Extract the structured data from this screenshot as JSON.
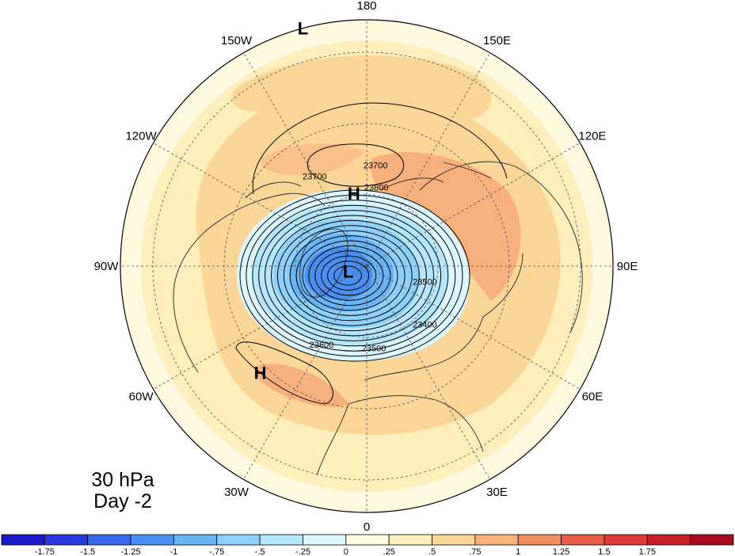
{
  "caption": {
    "level": "30 hPa",
    "day": "Day -2"
  },
  "longitude_labels": [
    {
      "label": "180",
      "lon": 180
    },
    {
      "label": "150E",
      "lon": 150
    },
    {
      "label": "120E",
      "lon": 120
    },
    {
      "label": "90E",
      "lon": 90
    },
    {
      "label": "60E",
      "lon": 60
    },
    {
      "label": "30E",
      "lon": 30
    },
    {
      "label": "0",
      "lon": 0
    },
    {
      "label": "30W",
      "lon": -30
    },
    {
      "label": "60W",
      "lon": -60
    },
    {
      "label": "90W",
      "lon": -90
    },
    {
      "label": "120W",
      "lon": -120
    },
    {
      "label": "150W",
      "lon": -150
    }
  ],
  "pressure_centers": [
    {
      "label": "L",
      "kind": "low",
      "lon": -165,
      "lat": 0
    },
    {
      "label": "H",
      "kind": "high",
      "lon": -170,
      "lat": 63
    },
    {
      "label": "L",
      "kind": "low",
      "lon": -75,
      "lat": 83
    },
    {
      "label": "H",
      "kind": "high",
      "lon": -45,
      "lat": 35
    }
  ],
  "contour_labels": [
    {
      "text": "23700",
      "lon": 175,
      "lat": 53
    },
    {
      "text": "23700",
      "lon": -150,
      "lat": 52
    },
    {
      "text": "23800",
      "lon": 173,
      "lat": 61
    },
    {
      "text": "23500",
      "lon": 75,
      "lat": 68
    },
    {
      "text": "23400",
      "lon": 45,
      "lat": 60
    },
    {
      "text": "23500",
      "lon": 5,
      "lat": 60
    },
    {
      "text": "23600",
      "lon": -30,
      "lat": 57
    }
  ],
  "colorbar": {
    "colors": [
      "#1a1ac8",
      "#2a3ae0",
      "#3a68ec",
      "#4a8ef2",
      "#6ab4f6",
      "#8ed0fa",
      "#b4e6fc",
      "#dcf6fe",
      "#fffbe2",
      "#fdeebc",
      "#fbd698",
      "#f8b478",
      "#f08e5e",
      "#e85a48",
      "#de3a3a",
      "#c81e2a",
      "#a80c1e"
    ],
    "labels": [
      "-1.75",
      "-1.5",
      "-1.25",
      "-1",
      "-.75",
      "-.5",
      "-.25",
      "0",
      ".25",
      ".5",
      ".75",
      "1",
      "1.25",
      "1.5",
      "1.75"
    ],
    "levels": [
      -1.75,
      -1.5,
      -1.25,
      -1,
      -0.75,
      -0.5,
      -0.25,
      0,
      0.25,
      0.5,
      0.75,
      1,
      1.25,
      1.5,
      1.75
    ]
  }
}
